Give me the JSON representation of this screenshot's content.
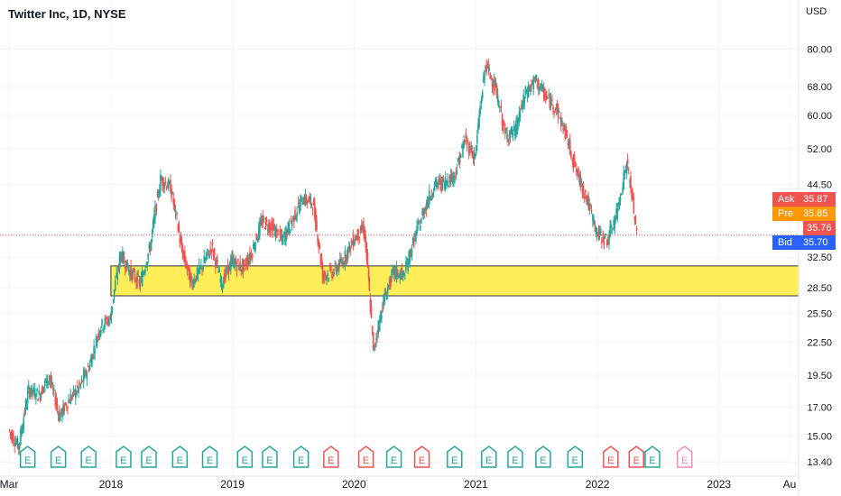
{
  "header": {
    "title": "Twitter Inc, 1D, NYSE",
    "currency": "USD"
  },
  "colors": {
    "up": "#26a69a",
    "down": "#ef5350",
    "zone": "#ffeb3b",
    "ask": "#ef5350",
    "pre": "#ff9800",
    "last": "#ef5350",
    "bid": "#2962ff"
  },
  "price_tags": {
    "ask": {
      "label": "Ask",
      "value": "35.87"
    },
    "pre": {
      "label": "Pre",
      "value": "35.85"
    },
    "last": {
      "value": "35.76"
    },
    "bid": {
      "label": "Bid",
      "value": "35.70"
    }
  },
  "chart_data": {
    "type": "candlestick",
    "title": "Twitter Inc, 1D, NYSE",
    "y_scale": "log",
    "ylim": [
      13.0,
      88.0
    ],
    "y_ticks": [
      "13.40",
      "15.00",
      "17.00",
      "19.50",
      "22.50",
      "25.50",
      "28.50",
      "32.50",
      "44.50",
      "52.00",
      "60.00",
      "68.00",
      "80.00"
    ],
    "x_ticks": [
      "Mar",
      "2018",
      "2019",
      "2020",
      "2021",
      "2022",
      "2023",
      "Au"
    ],
    "x_range": [
      "2017-03-01",
      "2023-08-01"
    ],
    "last_price": 35.76,
    "support_zone": {
      "low": 27.5,
      "high": 31.3,
      "start": "2018-01-01"
    },
    "closes": [
      [
        "2017-03-01",
        15.4
      ],
      [
        "2017-04-01",
        14.3
      ],
      [
        "2017-05-01",
        18.3
      ],
      [
        "2017-06-01",
        17.9
      ],
      [
        "2017-07-01",
        19.4
      ],
      [
        "2017-08-01",
        16.3
      ],
      [
        "2017-09-01",
        17.6
      ],
      [
        "2017-10-01",
        18.5
      ],
      [
        "2017-11-01",
        20.5
      ],
      [
        "2017-12-01",
        24.0
      ],
      [
        "2018-01-01",
        25.0
      ],
      [
        "2018-02-01",
        33.0
      ],
      [
        "2018-03-01",
        30.5
      ],
      [
        "2018-04-01",
        29.0
      ],
      [
        "2018-05-01",
        34.0
      ],
      [
        "2018-06-01",
        45.5
      ],
      [
        "2018-07-01",
        44.0
      ],
      [
        "2018-08-01",
        34.0
      ],
      [
        "2018-09-01",
        29.0
      ],
      [
        "2018-10-01",
        31.0
      ],
      [
        "2018-11-01",
        34.0
      ],
      [
        "2018-12-01",
        29.0
      ],
      [
        "2019-01-01",
        32.0
      ],
      [
        "2019-02-01",
        31.0
      ],
      [
        "2019-03-01",
        33.0
      ],
      [
        "2019-04-01",
        38.0
      ],
      [
        "2019-05-01",
        37.0
      ],
      [
        "2019-06-01",
        35.0
      ],
      [
        "2019-07-01",
        38.0
      ],
      [
        "2019-08-01",
        42.0
      ],
      [
        "2019-09-01",
        41.0
      ],
      [
        "2019-10-01",
        30.0
      ],
      [
        "2019-11-01",
        30.5
      ],
      [
        "2019-12-01",
        32.0
      ],
      [
        "2020-01-01",
        35.0
      ],
      [
        "2020-02-01",
        37.0
      ],
      [
        "2020-03-01",
        21.5
      ],
      [
        "2020-04-01",
        27.0
      ],
      [
        "2020-05-01",
        30.5
      ],
      [
        "2020-06-01",
        30.0
      ],
      [
        "2020-07-01",
        35.0
      ],
      [
        "2020-08-01",
        40.0
      ],
      [
        "2020-09-01",
        44.5
      ],
      [
        "2020-10-01",
        45.0
      ],
      [
        "2020-11-01",
        46.5
      ],
      [
        "2020-12-01",
        54.0
      ],
      [
        "2021-01-01",
        50.0
      ],
      [
        "2021-02-01",
        75.0
      ],
      [
        "2021-03-01",
        68.0
      ],
      [
        "2021-04-01",
        55.0
      ],
      [
        "2021-05-01",
        56.0
      ],
      [
        "2021-06-01",
        66.0
      ],
      [
        "2021-07-01",
        70.0
      ],
      [
        "2021-08-01",
        65.0
      ],
      [
        "2021-09-01",
        62.0
      ],
      [
        "2021-10-01",
        55.0
      ],
      [
        "2021-11-01",
        47.0
      ],
      [
        "2021-12-01",
        42.0
      ],
      [
        "2022-01-01",
        36.0
      ],
      [
        "2022-02-01",
        35.0
      ],
      [
        "2022-03-01",
        39.0
      ],
      [
        "2022-04-01",
        49.0
      ],
      [
        "2022-05-01",
        35.8
      ]
    ],
    "earnings_markers": [
      {
        "date": "2017-04-26",
        "result": "beat"
      },
      {
        "date": "2017-07-27",
        "result": "beat"
      },
      {
        "date": "2017-10-26",
        "result": "beat"
      },
      {
        "date": "2018-02-08",
        "result": "beat"
      },
      {
        "date": "2018-04-25",
        "result": "beat"
      },
      {
        "date": "2018-07-27",
        "result": "beat"
      },
      {
        "date": "2018-10-25",
        "result": "beat"
      },
      {
        "date": "2019-02-07",
        "result": "beat"
      },
      {
        "date": "2019-04-23",
        "result": "beat"
      },
      {
        "date": "2019-07-26",
        "result": "beat"
      },
      {
        "date": "2019-10-24",
        "result": "miss"
      },
      {
        "date": "2020-02-06",
        "result": "miss"
      },
      {
        "date": "2020-04-30",
        "result": "beat"
      },
      {
        "date": "2020-07-23",
        "result": "miss"
      },
      {
        "date": "2020-10-29",
        "result": "beat"
      },
      {
        "date": "2021-02-09",
        "result": "beat"
      },
      {
        "date": "2021-04-29",
        "result": "beat"
      },
      {
        "date": "2021-07-22",
        "result": "beat"
      },
      {
        "date": "2021-10-26",
        "result": "beat"
      },
      {
        "date": "2022-02-10",
        "result": "miss"
      },
      {
        "date": "2022-04-28",
        "result": "miss"
      },
      {
        "date": "2022-06-15",
        "result": "beat"
      },
      {
        "date": "2022-09-20",
        "result": "upcoming"
      }
    ],
    "grid": true
  }
}
